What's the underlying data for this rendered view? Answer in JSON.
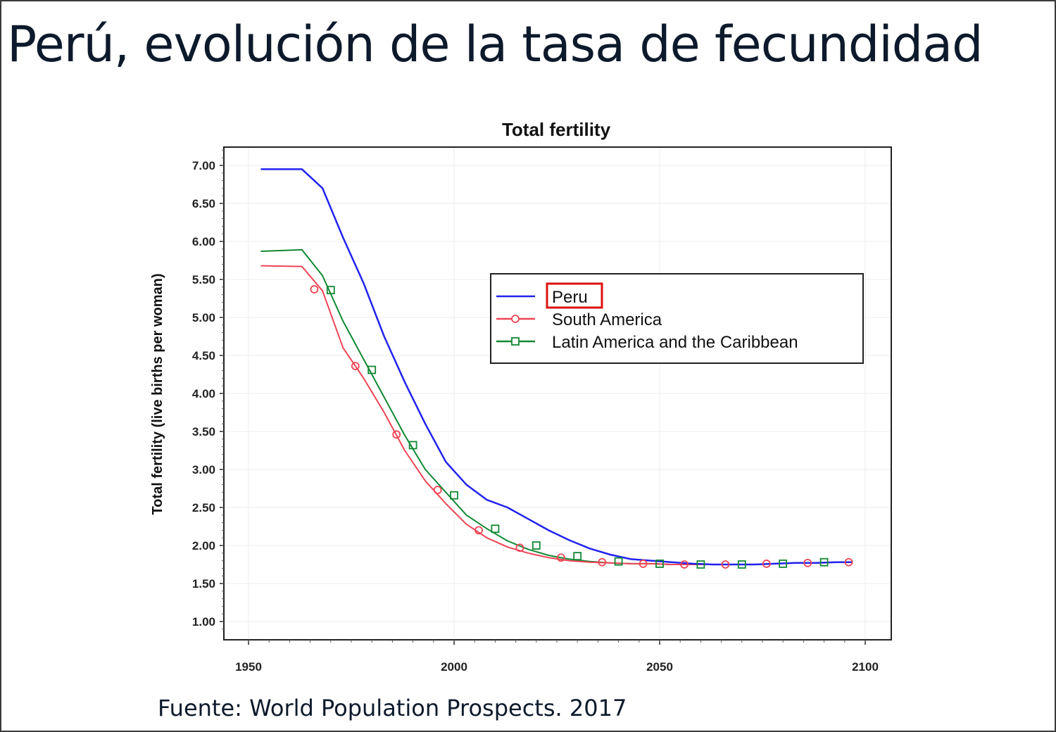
{
  "slide": {
    "title": "Perú, evolución de la tasa de fecundidad",
    "source": "Fuente: World Population Prospects. 2017"
  },
  "chart_data": {
    "type": "line",
    "title": "Total fertility",
    "xlabel": "",
    "ylabel": "Total fertility (live births per woman)",
    "xlim": [
      1950,
      2100
    ],
    "ylim": [
      0.8,
      7.3
    ],
    "x_ticks": [
      1950,
      2000,
      2050,
      2100
    ],
    "y_ticks": [
      1.0,
      1.5,
      2.0,
      2.5,
      3.0,
      3.5,
      4.0,
      4.5,
      5.0,
      5.5,
      6.0,
      6.5,
      7.0
    ],
    "y_tick_labels": [
      "1.00",
      "1.50",
      "2.00",
      "2.50",
      "3.00",
      "3.50",
      "4.00",
      "4.50",
      "5.00",
      "5.50",
      "6.00",
      "6.50",
      "7.00"
    ],
    "grid": true,
    "legend_position": "center-right",
    "highlighted_legend_entry": "Peru",
    "x": [
      1953,
      1963,
      1968,
      1973,
      1978,
      1983,
      1988,
      1993,
      1998,
      2003,
      2008,
      2013,
      2018,
      2023,
      2028,
      2033,
      2038,
      2043,
      2048,
      2053,
      2058,
      2063,
      2068,
      2073,
      2078,
      2083,
      2088,
      2093,
      2097
    ],
    "series": [
      {
        "name": "Peru",
        "color": "#2222ee",
        "marker": "none",
        "values": [
          6.95,
          6.95,
          6.7,
          6.05,
          5.45,
          4.75,
          4.15,
          3.6,
          3.1,
          2.8,
          2.6,
          2.5,
          2.35,
          2.2,
          2.07,
          1.96,
          1.88,
          1.82,
          1.8,
          1.78,
          1.76,
          1.75,
          1.75,
          1.75,
          1.76,
          1.77,
          1.77,
          1.78,
          1.78
        ]
      },
      {
        "name": "South America",
        "color": "#ee4455",
        "marker": "circle",
        "values": [
          5.68,
          5.67,
          5.35,
          4.6,
          4.2,
          3.75,
          3.25,
          2.85,
          2.55,
          2.28,
          2.1,
          1.98,
          1.9,
          1.84,
          1.8,
          1.78,
          1.77,
          1.76,
          1.76,
          1.75,
          1.75,
          1.75,
          1.75,
          1.75,
          1.76,
          1.77,
          1.77,
          1.78,
          1.78
        ],
        "marker_x": [
          1966,
          1976,
          1986,
          1996,
          2006,
          2016,
          2026,
          2036,
          2046,
          2056,
          2066,
          2076,
          2086,
          2096
        ],
        "marker_values": [
          5.37,
          4.36,
          3.46,
          2.73,
          2.2,
          1.97,
          1.84,
          1.78,
          1.76,
          1.75,
          1.75,
          1.76,
          1.77,
          1.78
        ]
      },
      {
        "name": "Latin America and the Caribbean",
        "color": "#118833",
        "marker": "square",
        "values": [
          5.87,
          5.89,
          5.55,
          4.95,
          4.45,
          3.95,
          3.45,
          3.0,
          2.7,
          2.4,
          2.22,
          2.06,
          1.95,
          1.87,
          1.82,
          1.79,
          1.77,
          1.76,
          1.76,
          1.75,
          1.75,
          1.75,
          1.75,
          1.75,
          1.76,
          1.77,
          1.77,
          1.78,
          1.78
        ],
        "marker_x": [
          1970,
          1980,
          1990,
          2000,
          2010,
          2020,
          2030,
          2040,
          2050,
          2060,
          2070,
          2080,
          2090
        ],
        "marker_values": [
          5.36,
          4.31,
          3.32,
          2.66,
          2.22,
          2.0,
          1.86,
          1.79,
          1.76,
          1.75,
          1.75,
          1.76,
          1.78
        ]
      }
    ]
  }
}
